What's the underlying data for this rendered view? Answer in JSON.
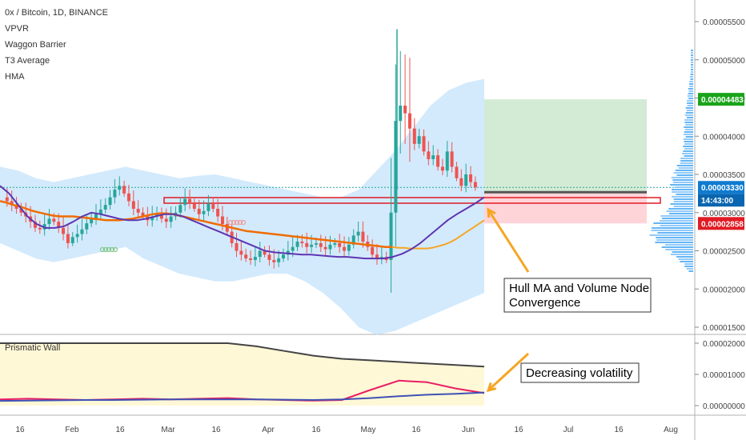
{
  "header": {
    "symbol_line": "0x / Bitcoin, 1D, BINANCE",
    "indicators": [
      "VPVR",
      "Waggon Barrier",
      "T3 Average",
      "HMA"
    ]
  },
  "sub_pane": {
    "label": "Prismatic Wall"
  },
  "annotations": {
    "hull": [
      "Hull MA and Volume Node",
      "Convergence"
    ],
    "volatility": "Decreasing volatility"
  },
  "price_tags": {
    "target": "0.00004483",
    "current": "0.00003330",
    "countdown": "14:43:00",
    "stop": "0.00002858"
  },
  "colors": {
    "up_candle": "#26a69a",
    "down_candle": "#ef5350",
    "hma": "#5e35b1",
    "t3": "#ef6c00",
    "band": "#bbdefb",
    "profit_zone": "#c8e6c9",
    "loss_zone": "#ffcdd2",
    "annotation_arrow": "#f5a623",
    "target_tag": "#1aa41a",
    "current_tag": "#0f7bd0",
    "stop_tag": "#e01b24"
  },
  "chart_data": [
    {
      "type": "candlestick",
      "title": "0x / Bitcoin, 1D, BINANCE",
      "y_axis_ticks": [
        "0.00005500",
        "0.00005000",
        "0.00004500",
        "0.00004000",
        "0.00003500",
        "0.00003000",
        "0.00002500",
        "0.00002000",
        "0.00001500"
      ],
      "x_axis_ticks": [
        "16",
        "Feb",
        "16",
        "Mar",
        "16",
        "Apr",
        "16",
        "May",
        "16",
        "Jun",
        "16",
        "Jul",
        "16",
        "Aug"
      ],
      "ylim": [
        1.4e-05,
        5.9e-05
      ],
      "price_series": [
        3.2,
        3.15,
        3.1,
        3.05,
        3.0,
        2.95,
        2.88,
        2.8,
        2.78,
        2.85,
        2.92,
        2.88,
        2.8,
        2.72,
        2.6,
        2.68,
        2.72,
        2.78,
        2.86,
        2.92,
        2.98,
        3.04,
        3.1,
        3.2,
        3.3,
        3.35,
        3.25,
        3.15,
        3.05,
        3.0,
        2.95,
        2.9,
        2.95,
        2.98,
        2.92,
        2.88,
        2.95,
        3.0,
        3.1,
        3.18,
        3.12,
        3.05,
        2.98,
        3.02,
        3.12,
        3.05,
        2.95,
        2.85,
        2.75,
        2.6,
        2.5,
        2.45,
        2.4,
        2.38,
        2.42,
        2.5,
        2.45,
        2.38,
        2.35,
        2.4,
        2.45,
        2.5,
        2.55,
        2.62,
        2.6,
        2.55,
        2.58,
        2.6,
        2.55,
        2.52,
        2.58,
        2.6,
        2.55,
        2.5,
        2.58,
        2.7,
        2.75,
        2.62,
        2.55,
        2.45,
        2.4,
        2.42,
        2.38,
        3.0,
        4.2,
        4.4,
        4.3,
        4.1,
        3.9,
        4.0,
        3.8,
        3.7,
        3.75,
        3.6,
        3.55,
        3.8,
        3.6,
        3.45,
        3.35,
        3.5,
        3.4,
        3.33
      ],
      "candle_start_x": 3,
      "candle_step_x": 5.85,
      "t3_series": [
        3.15,
        3.13,
        3.1,
        3.08,
        3.05,
        3.02,
        3.0,
        2.98,
        2.96,
        2.95,
        2.95,
        2.95,
        2.94,
        2.93,
        2.92,
        2.91,
        2.9,
        2.9,
        2.9,
        2.91,
        2.92,
        2.94,
        2.96,
        2.98,
        2.99,
        2.99,
        2.98,
        2.96,
        2.94,
        2.92,
        2.9,
        2.88,
        2.86,
        2.84,
        2.82,
        2.8,
        2.78,
        2.76,
        2.75,
        2.74,
        2.73,
        2.72,
        2.71,
        2.7,
        2.69,
        2.68,
        2.67,
        2.66,
        2.65,
        2.64,
        2.63,
        2.62,
        2.61,
        2.6,
        2.59,
        2.58,
        2.57,
        2.56,
        2.55,
        2.55,
        2.54,
        2.54,
        2.53,
        2.53,
        2.53,
        2.53,
        2.54,
        2.56,
        2.58,
        2.61,
        2.65,
        2.7,
        2.75,
        2.8,
        2.85,
        2.9
      ],
      "hma_series": [
        3.35,
        3.25,
        3.1,
        2.95,
        2.85,
        2.8,
        2.8,
        2.82,
        2.88,
        2.95,
        3.0,
        2.98,
        2.95,
        2.92,
        2.9,
        2.9,
        2.92,
        2.95,
        2.98,
        2.98,
        2.95,
        2.9,
        2.85,
        2.8,
        2.75,
        2.7,
        2.65,
        2.6,
        2.55,
        2.5,
        2.48,
        2.47,
        2.46,
        2.45,
        2.45,
        2.44,
        2.43,
        2.42,
        2.42,
        2.41,
        2.4,
        2.4,
        2.4,
        2.42,
        2.46,
        2.52,
        2.6,
        2.7,
        2.8,
        2.9,
        2.98,
        3.05,
        3.12,
        3.2
      ],
      "band_upper": [
        3.6,
        3.55,
        3.45,
        3.4,
        3.45,
        3.5,
        3.55,
        3.6,
        3.55,
        3.5,
        3.45,
        3.48,
        3.5,
        3.45,
        3.4,
        3.35,
        3.3,
        3.25,
        3.2,
        3.2,
        3.3,
        3.55,
        3.8,
        4.1,
        4.4,
        4.6,
        4.7,
        4.75
      ],
      "band_lower": [
        2.6,
        2.5,
        2.4,
        2.35,
        2.4,
        2.45,
        2.5,
        2.55,
        2.4,
        2.3,
        2.2,
        2.15,
        2.1,
        2.1,
        2.15,
        2.2,
        2.2,
        2.1,
        1.95,
        1.75,
        1.5,
        1.4,
        1.45,
        1.55,
        1.65,
        1.75,
        1.85,
        1.95
      ],
      "horizontal_levels": {
        "target": 4.483e-05,
        "current": 3.33e-05,
        "stop": 2.858e-05
      },
      "volume_profile": "horizontal histogram on right edge, heaviest nodes near 0.000025–0.000031"
    },
    {
      "type": "line",
      "title": "Prismatic Wall",
      "y_axis_ticks": [
        "0.00002000",
        "0.00001000",
        "0.00000000"
      ],
      "x_axis_ticks": [
        "16",
        "Feb",
        "16",
        "Mar",
        "16",
        "Apr",
        "16",
        "May",
        "16",
        "Jun",
        "16",
        "Jul",
        "16",
        "Aug"
      ],
      "series": [
        {
          "values": [
            2.0,
            2.0,
            2.0,
            2.0,
            2.0,
            2.0,
            2.0,
            2.0,
            2.0,
            1.9,
            1.75,
            1.6,
            1.5,
            1.45,
            1.4,
            1.35,
            1.3,
            1.25
          ]
        },
        {
          "values": [
            0.2,
            0.22,
            0.2,
            0.18,
            0.2,
            0.22,
            0.2,
            0.22,
            0.24,
            0.2,
            0.18,
            0.16,
            0.18,
            0.5,
            0.8,
            0.75,
            0.55,
            0.4
          ]
        },
        {
          "values": [
            0.15,
            0.16,
            0.17,
            0.18,
            0.18,
            0.19,
            0.2,
            0.2,
            0.2,
            0.2,
            0.19,
            0.18,
            0.2,
            0.24,
            0.3,
            0.35,
            0.38,
            0.42
          ]
        }
      ]
    }
  ]
}
